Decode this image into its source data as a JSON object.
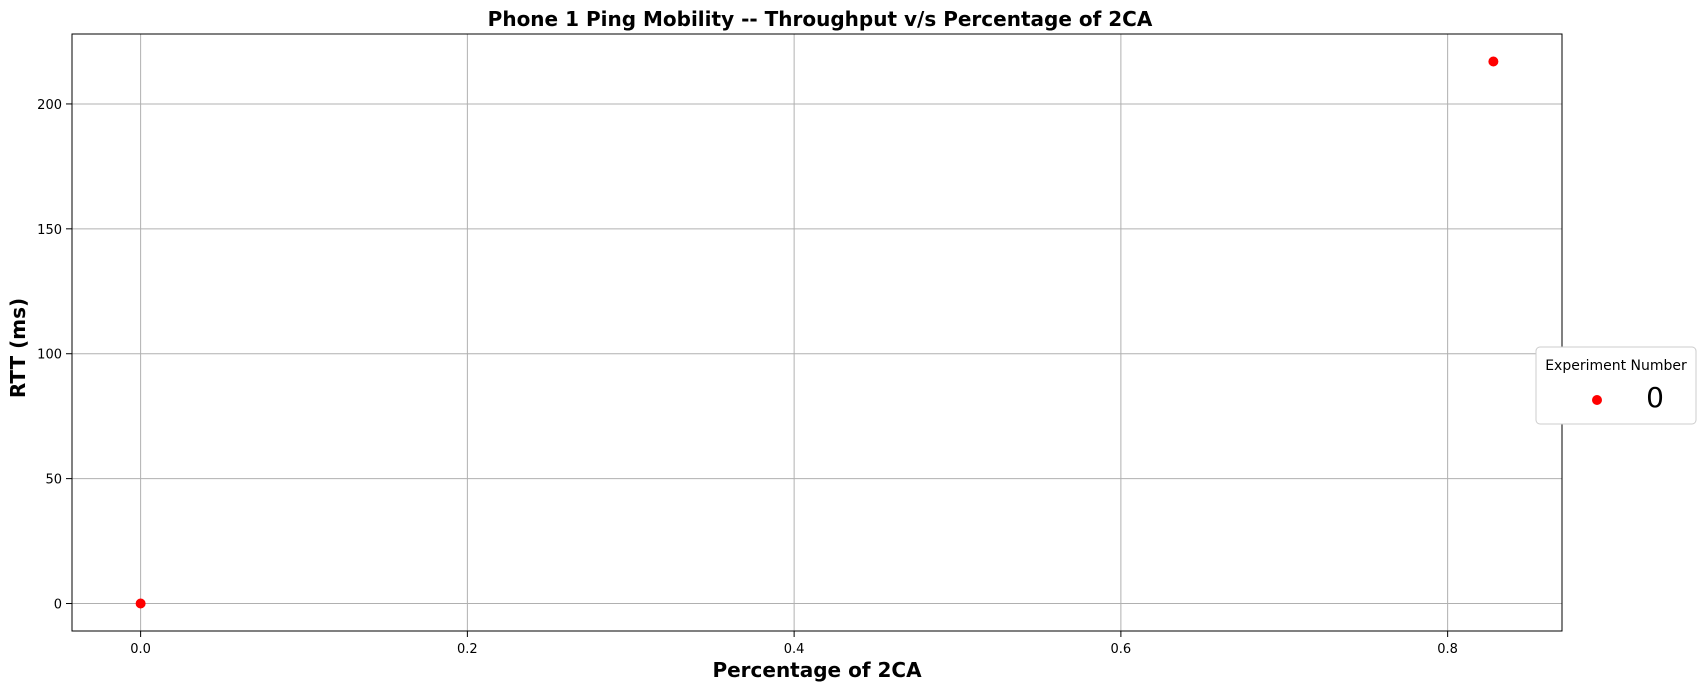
{
  "chart_data": {
    "type": "scatter",
    "title": "Phone 1 Ping Mobility -- Throughput v/s Percentage of 2CA",
    "xlabel": "Percentage of 2CA",
    "ylabel": "RTT (ms)",
    "xlim": [
      -0.042,
      0.87
    ],
    "ylim": [
      -11,
      228
    ],
    "xticks": [
      0.0,
      0.2,
      0.4,
      0.6,
      0.8
    ],
    "xtick_labels": [
      "0.0",
      "0.2",
      "0.4",
      "0.6",
      "0.8"
    ],
    "yticks": [
      0,
      50,
      100,
      150,
      200
    ],
    "ytick_labels": [
      "0",
      "50",
      "100",
      "150",
      "200"
    ],
    "grid": true,
    "legend": {
      "title": "Experiment Number",
      "placement": "outside-right",
      "entries": [
        "0"
      ]
    },
    "series": [
      {
        "name": "0",
        "color": "#ff0000",
        "points": [
          {
            "x": 0.0,
            "y": 0
          },
          {
            "x": 0.828,
            "y": 217
          }
        ]
      }
    ]
  }
}
